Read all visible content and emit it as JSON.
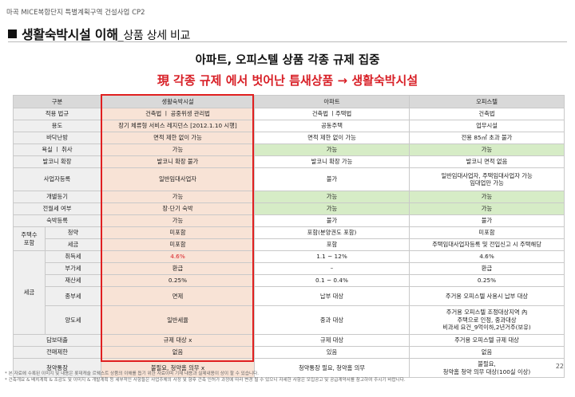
{
  "header": {
    "doc_title": "마곡 MICE복합단지 특별계획구역 건설사업 CP2"
  },
  "page": {
    "title_main": "생활숙박시설 이해",
    "title_sub": "_상품 상세 비교",
    "number": "22"
  },
  "headlines": {
    "line1": "아파트, 오피스텔 상품 각종 규제 집중",
    "line2": "現 각종 규제 에서 벗어난 틈새상품 → 생활숙박시설"
  },
  "table": {
    "headers": [
      "구분",
      "생활숙박시설",
      "아파트",
      "오피스텔"
    ],
    "rows": [
      {
        "label": "적용 법규",
        "c1": "건축법 ㅣ 공중위생 관리법",
        "c2": "건축법 ㅣ주택법",
        "c3": "건축법"
      },
      {
        "label": "용도",
        "c1": "장기 체류형 서비스 레지던스 [2012.1.10 시행]",
        "c2": "공동주택",
        "c3": "업무시설"
      },
      {
        "label": "바닥난방",
        "c1": "면적 제한 없이 가능",
        "c2": "면적 제한 없이 가능",
        "c3": "전용 85㎡ 초과 불가"
      },
      {
        "label": "욕실 ㅣ 취사",
        "c1": "가능",
        "c2": "가능",
        "c3": "가능"
      },
      {
        "label": "발코니 확장",
        "c1": "발코니 확장 불가",
        "c2": "발코니 확장 가능",
        "c3": "발코니 면적 없음"
      },
      {
        "label": "사업자등록",
        "c1": "일반임대사업자",
        "c2": "불가",
        "c3": "일반임대사업자, 주택임대사업자 가능\n임대업만 가능"
      },
      {
        "label": "개별등기",
        "c1": "가능",
        "c2": "가능",
        "c3": "가능"
      },
      {
        "label": "전월세 여부",
        "c1": "장·단기 숙박",
        "c2": "가능",
        "c3": "가능"
      },
      {
        "label": "숙박등록",
        "c1": "가능",
        "c2": "불가",
        "c3": "불가"
      }
    ],
    "housing_group": {
      "label": "주택수\n포함",
      "rows": [
        {
          "label": "청약",
          "c1": "미포함",
          "c2": "포함(분양권도 포함)",
          "c3": "미포함"
        },
        {
          "label": "세금",
          "c1": "미포함",
          "c2": "포함",
          "c3": "주택임대사업자등록 및 전입신고 시 주택해당"
        }
      ]
    },
    "tax_group": {
      "label": "세금",
      "rows": [
        {
          "label": "취득세",
          "c1": "4.6%",
          "c2": "1.1 ~ 12%",
          "c3": "4.6%"
        },
        {
          "label": "부가세",
          "c1": "환급",
          "c2": "–",
          "c3": "환급"
        },
        {
          "label": "재산세",
          "c1": "0.25%",
          "c2": "0.1 ~ 0.4%",
          "c3": "0.25%"
        },
        {
          "label": "종부세",
          "c1": "면제",
          "c2": "납부 대상",
          "c3": "주거용 오피스텔 사용시 납부 대상"
        },
        {
          "label": "양도세",
          "c1": "일반세율",
          "c2": "중과 대상",
          "c3": "주거용 오피스텔 조정대상지역 內\n주택으로 인정, 중과대상\n비과세 요건_9억이하,2년거주(보유)"
        }
      ]
    },
    "bottom_rows": [
      {
        "label": "담보대출",
        "c1": "규제 대상 x",
        "c2": "규제 대상",
        "c3": "주거용 오피스텔 규제 대상"
      },
      {
        "label": "전매제한",
        "c1": "없음",
        "c2": "있음",
        "c3": "없음"
      },
      {
        "label": "청약통장",
        "c1": "불필요, 청약홈 의무 x",
        "c2": "청약통장 필요, 청약홈 의무",
        "c3": "불필요,\n청약홈 청약 의무 대상(100실 이상)"
      }
    ]
  },
  "footnotes": [
    "* 본 자료에 수록된 이미지 및 내용은 롯데캐슬 르웨스트 상품의 이해를 돕기 위한 자료이며 기재 내용과 실제내용이 상이 할 수 있습니다.",
    "* 건축개요 & 배치계획 & 조감도 및 이미지 & 개발계획 등 세부적인 사항들은 사업주체의 사정 및 향후 건축 인허가 과정에 따라 변경 될 수 있으니 자세한 사항은 모집공고 및 공급계약서를 참고하여 주시기 바랍니다."
  ]
}
